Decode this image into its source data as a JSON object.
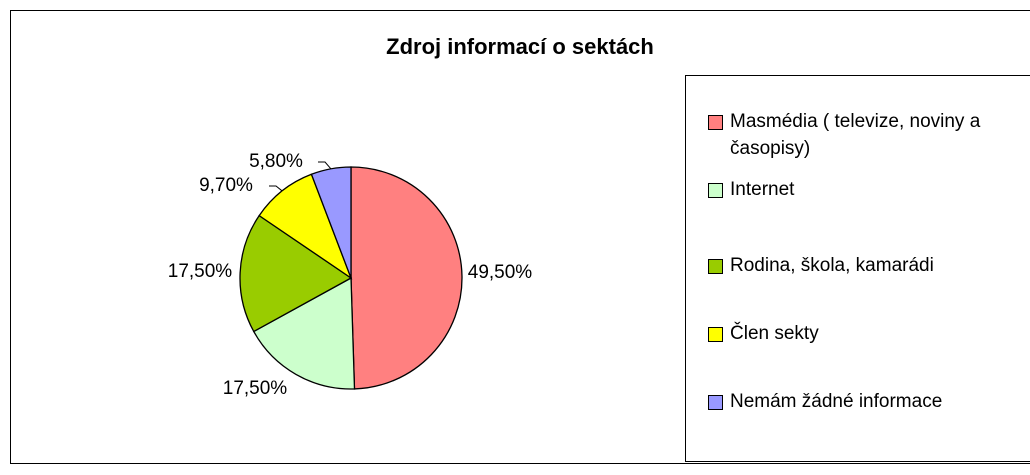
{
  "chart_data": {
    "type": "pie",
    "title": "Zdroj informací o sektách",
    "categories": [
      "Masmédia ( televize, noviny a časopisy)",
      "Internet",
      "Rodina, škola, kamarádi",
      "Člen sekty",
      "Nemám žádné informace"
    ],
    "values": [
      49.5,
      17.5,
      17.5,
      9.7,
      5.8
    ],
    "value_labels": [
      "49,50%",
      "17,50%",
      "17,50%",
      "9,70%",
      "5,80%"
    ],
    "colors": [
      "#FF8080",
      "#CCFFCC",
      "#99CC00",
      "#FFFF00",
      "#9999FF"
    ],
    "legend": "right"
  }
}
